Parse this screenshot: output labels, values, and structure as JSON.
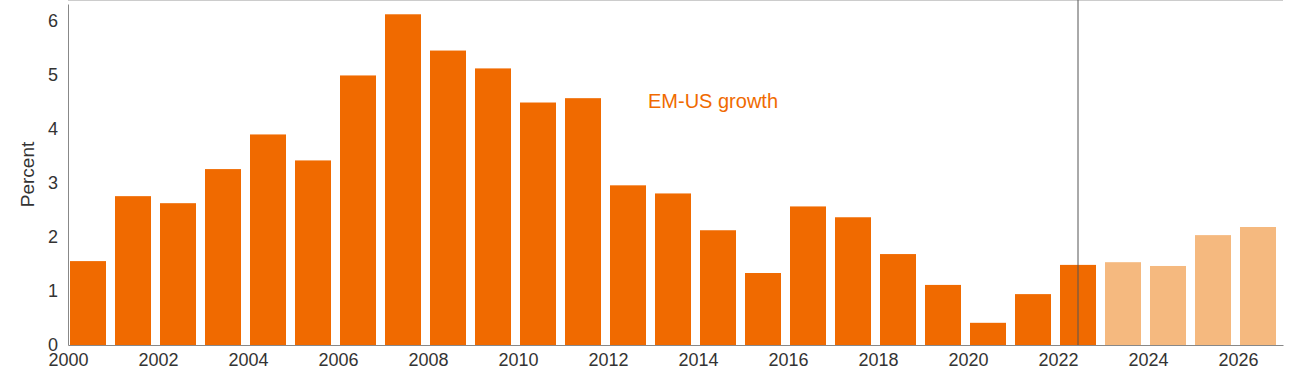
{
  "chart_data": {
    "type": "bar",
    "annotation": "EM-US growth",
    "y_label": "Percent",
    "x": [
      2000,
      2001,
      2002,
      2003,
      2004,
      2005,
      2006,
      2007,
      2008,
      2009,
      2010,
      2011,
      2012,
      2013,
      2014,
      2015,
      2016,
      2017,
      2018,
      2019,
      2020,
      2021,
      2022,
      2023,
      2024,
      2025,
      2026
    ],
    "values": [
      1.55,
      2.75,
      2.62,
      3.25,
      3.89,
      3.41,
      4.98,
      6.11,
      5.44,
      5.11,
      4.48,
      4.56,
      2.95,
      2.8,
      2.12,
      1.33,
      2.56,
      2.36,
      1.68,
      1.11,
      0.41,
      0.94,
      1.48,
      1.53,
      1.46,
      2.03,
      2.18
    ],
    "colors": [
      "#f06a00",
      "#f06a00",
      "#f06a00",
      "#f06a00",
      "#f06a00",
      "#f06a00",
      "#f06a00",
      "#f06a00",
      "#f06a00",
      "#f06a00",
      "#f06a00",
      "#f06a00",
      "#f06a00",
      "#f06a00",
      "#f06a00",
      "#f06a00",
      "#f06a00",
      "#f06a00",
      "#f06a00",
      "#f06a00",
      "#f06a00",
      "#f06a00",
      "#f06a00",
      "#f5b97f",
      "#f5b97f",
      "#f5b97f",
      "#f5b97f"
    ],
    "xlim": [
      2000,
      2027
    ],
    "xticks": [
      2000,
      2002,
      2004,
      2006,
      2008,
      2010,
      2012,
      2014,
      2016,
      2018,
      2020,
      2022,
      2024,
      2026
    ],
    "ylim": [
      0,
      6.3
    ],
    "yticks": [
      0,
      1,
      2,
      3,
      4,
      5,
      6
    ],
    "grid": false
  }
}
